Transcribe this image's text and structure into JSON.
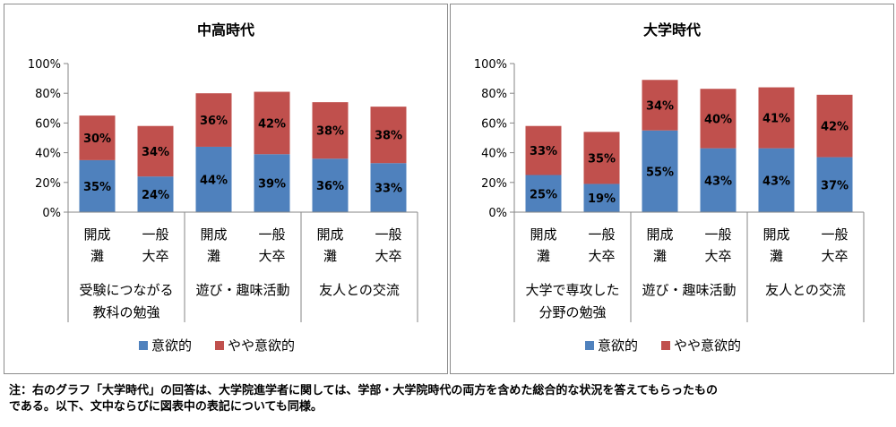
{
  "chart_data": [
    {
      "type": "bar",
      "stacked": true,
      "title": "中高時代",
      "ylim": [
        0,
        100
      ],
      "y_ticks": [
        "0%",
        "20%",
        "40%",
        "60%",
        "80%",
        "100%"
      ],
      "bars": [
        [
          "開成",
          "灘"
        ],
        [
          "一般",
          "大卒"
        ],
        [
          "開成",
          "灘"
        ],
        [
          "一般",
          "大卒"
        ],
        [
          "開成",
          "灘"
        ],
        [
          "一般",
          "大卒"
        ]
      ],
      "groups": [
        [
          "受験につながる",
          "教科の勉強"
        ],
        [
          "遊び・趣味活動"
        ],
        [
          "友人との交流"
        ]
      ],
      "series": [
        {
          "name": "意欲的",
          "color": "#4f81bd",
          "values": [
            35,
            24,
            44,
            39,
            36,
            33
          ],
          "labels": [
            "35%",
            "24%",
            "44%",
            "39%",
            "36%",
            "33%"
          ]
        },
        {
          "name": "やや意欲的",
          "color": "#c0504d",
          "values": [
            30,
            34,
            36,
            42,
            38,
            38
          ],
          "labels": [
            "30%",
            "34%",
            "36%",
            "42%",
            "38%",
            "38%"
          ]
        }
      ],
      "legend": "bottom",
      "grid": false
    },
    {
      "type": "bar",
      "stacked": true,
      "title": "大学時代",
      "ylim": [
        0,
        100
      ],
      "y_ticks": [
        "0%",
        "20%",
        "40%",
        "60%",
        "80%",
        "100%"
      ],
      "bars": [
        [
          "開成",
          "灘"
        ],
        [
          "一般",
          "大卒"
        ],
        [
          "開成",
          "灘"
        ],
        [
          "一般",
          "大卒"
        ],
        [
          "開成",
          "灘"
        ],
        [
          "一般",
          "大卒"
        ]
      ],
      "groups": [
        [
          "大学で専攻した",
          "分野の勉強"
        ],
        [
          "遊び・趣味活動"
        ],
        [
          "友人との交流"
        ]
      ],
      "series": [
        {
          "name": "意欲的",
          "color": "#4f81bd",
          "values": [
            25,
            19,
            55,
            43,
            43,
            37
          ],
          "labels": [
            "25%",
            "19%",
            "55%",
            "43%",
            "43%",
            "37%"
          ]
        },
        {
          "name": "やや意欲的",
          "color": "#c0504d",
          "values": [
            33,
            35,
            34,
            40,
            41,
            42
          ],
          "labels": [
            "33%",
            "35%",
            "34%",
            "40%",
            "41%",
            "42%"
          ]
        }
      ],
      "legend": "bottom",
      "grid": false
    }
  ],
  "note": {
    "line1": "注：右のグラフ「大学時代」の回答は、大学院進学者に関しては、学部・大学院時代の両方を含めた総合的な状況を答えてもらったもの",
    "line2": "である。以下、文中ならびに図表中の表記についても同様。"
  }
}
